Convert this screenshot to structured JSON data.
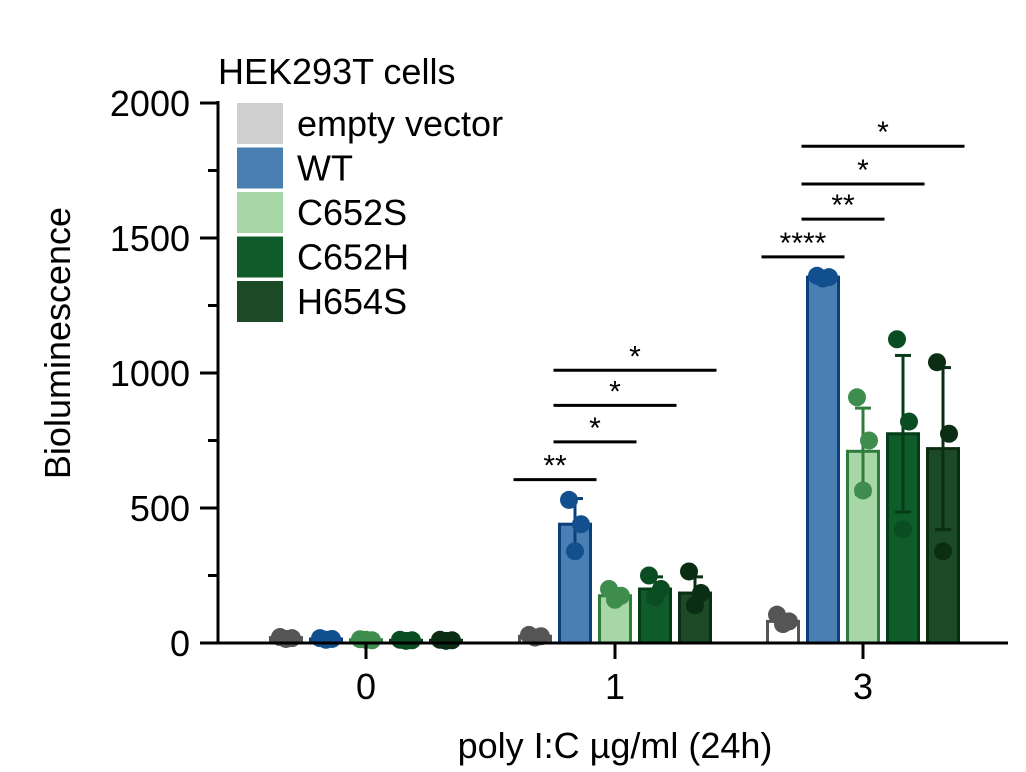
{
  "chart_data": {
    "type": "bar",
    "title": "HEK293T cells",
    "xlabel": "poly I:C µg/ml (24h)",
    "ylabel": "Bioluminescence",
    "ylim": [
      0,
      2000
    ],
    "yticks": [
      "0",
      "500",
      "1000",
      "1500",
      "2000"
    ],
    "categories": [
      "0",
      "1",
      "3"
    ],
    "legend_position": "top-left",
    "grid": false,
    "series": [
      {
        "name": "empty vector",
        "fill": "#ffffff",
        "stroke": "#555555",
        "dot": "#555555",
        "values": [
          20,
          25,
          80
        ],
        "errors": [
          5,
          5,
          10
        ],
        "points": [
          [
            22,
            18,
            15
          ],
          [
            30,
            25,
            20
          ],
          [
            105,
            80,
            70
          ]
        ]
      },
      {
        "name": "WT",
        "fill": "#4a7fb3",
        "stroke": "#0b3f7a",
        "dot": "#124f8e",
        "values": [
          15,
          440,
          1355
        ],
        "errors": [
          3,
          95,
          10
        ],
        "points": [
          [
            18,
            15,
            12
          ],
          [
            530,
            440,
            340
          ],
          [
            1360,
            1355,
            1350
          ]
        ]
      },
      {
        "name": "C652S",
        "fill": "#a7d7a7",
        "stroke": "#2e7d3b",
        "dot": "#3f8d4d",
        "values": [
          12,
          175,
          710
        ],
        "errors": [
          2,
          25,
          160
        ],
        "points": [
          [
            14,
            10,
            12
          ],
          [
            200,
            175,
            160
          ],
          [
            910,
            750,
            565
          ]
        ]
      },
      {
        "name": "C652H",
        "fill": "#0f5c2a",
        "stroke": "#053d18",
        "dot": "#0b4d22",
        "values": [
          10,
          200,
          775
        ],
        "errors": [
          2,
          45,
          290
        ],
        "points": [
          [
            12,
            10,
            8
          ],
          [
            250,
            200,
            170
          ],
          [
            1125,
            820,
            420
          ]
        ]
      },
      {
        "name": "H654S",
        "fill": "#1c4a26",
        "stroke": "#0a2d13",
        "dot": "#0a2d13",
        "values": [
          10,
          185,
          720
        ],
        "errors": [
          2,
          60,
          300
        ],
        "points": [
          [
            12,
            10,
            8
          ],
          [
            265,
            185,
            140
          ],
          [
            1040,
            775,
            340
          ]
        ]
      }
    ],
    "significance": [
      {
        "group": 1,
        "from": 0,
        "to": 1,
        "y": 605,
        "label": "**"
      },
      {
        "group": 1,
        "from": 1,
        "to": 2,
        "y": 745,
        "label": "*"
      },
      {
        "group": 1,
        "from": 1,
        "to": 3,
        "y": 880,
        "label": "*"
      },
      {
        "group": 1,
        "from": 1,
        "to": 4,
        "y": 1010,
        "label": "*"
      },
      {
        "group": 2,
        "from": 0,
        "to": 1,
        "y": 1430,
        "label": "****"
      },
      {
        "group": 2,
        "from": 1,
        "to": 2,
        "y": 1570,
        "label": "**"
      },
      {
        "group": 2,
        "from": 1,
        "to": 3,
        "y": 1700,
        "label": "*"
      },
      {
        "group": 2,
        "from": 1,
        "to": 4,
        "y": 1840,
        "label": "*"
      }
    ]
  }
}
